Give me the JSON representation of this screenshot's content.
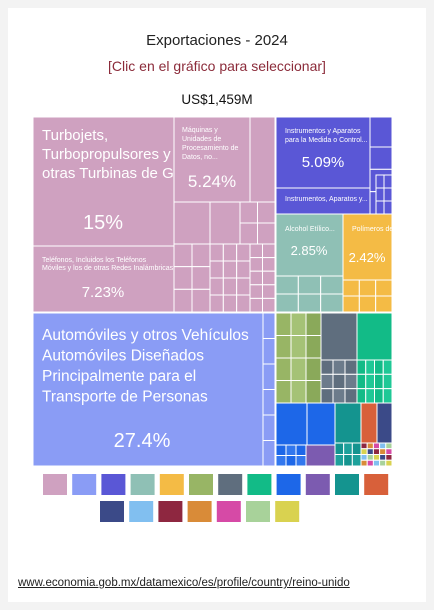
{
  "title": "Exportaciones - 2024",
  "subtitle": "[Clic en el gráfico para seleccionar]",
  "total": "US$1,459M",
  "footer_link": "www.economia.gob.mx/datamexico/es/profile/country/reino-unido",
  "chart_data": {
    "type": "treemap",
    "title": "Exportaciones - 2024",
    "total": "US$1,459M",
    "labeled_items": [
      {
        "name": "Automóviles y otros Vehículos Automóviles Diseñados Principalmente para el Transporte de Personas",
        "value": 27.4,
        "label": "27.4%",
        "color": "#8a9cf5"
      },
      {
        "name": "Turbojets, Turbopropulsores y otras Turbinas de Gas",
        "value": 15,
        "label": "15%",
        "color": "#cfa1c0"
      },
      {
        "name": "Teléfonos, Incluidos los Teléfonos Móviles y los de otras Redes Inalámbricas",
        "value": 7.23,
        "label": "7.23%",
        "color": "#cfa1c0"
      },
      {
        "name": "Máquinas y Unidades de Procesamiento de Datos, no...",
        "value": 5.24,
        "label": "5.24%",
        "color": "#cfa1c0"
      },
      {
        "name": "Instrumentos y Aparatos para la Medida o Control...",
        "value": 5.09,
        "label": "5.09%",
        "color": "#5a57d6"
      },
      {
        "name": "Instrumentos, Aparatos y...",
        "value": null,
        "label": "",
        "color": "#5a57d6"
      },
      {
        "name": "Alcohol Etílico...",
        "value": 2.85,
        "label": "2.85%",
        "color": "#8fc0b5"
      },
      {
        "name": "Polímeros de...",
        "value": 2.42,
        "label": "2.42%",
        "color": "#f4bb45"
      }
    ],
    "legend_colors": [
      "#cfa1c0",
      "#8a9cf5",
      "#5a57d6",
      "#8fc0b5",
      "#f4bb45",
      "#98b565",
      "#5f6e7e",
      "#12bb87",
      "#1d67e8",
      "#7c5bb0",
      "#14948f",
      "#d8603a",
      "#3b4a88",
      "#81bff0",
      "#8e2740",
      "#d98b38",
      "#d64aa6",
      "#a8d29a",
      "#d9d250"
    ]
  }
}
